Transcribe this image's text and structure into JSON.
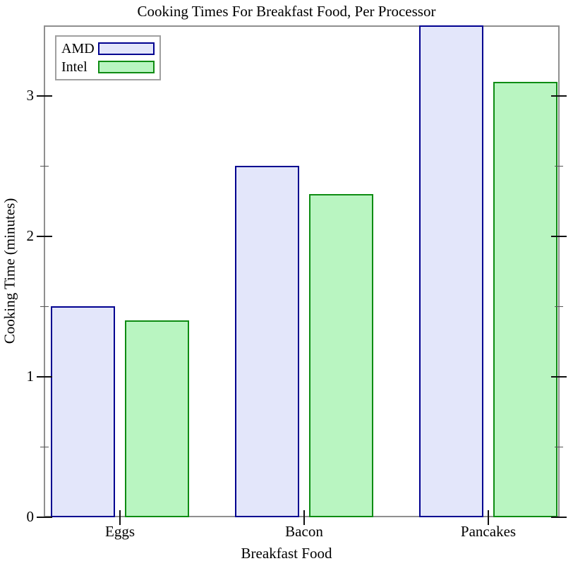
{
  "title": "Cooking Times For Breakfast Food, Per Processor",
  "legend": {
    "position": "top-left",
    "entries": [
      {
        "label": "AMD",
        "fill": "#e3e6fa",
        "border": "#000090"
      },
      {
        "label": "Intel",
        "fill": "#b9f5c1",
        "border": "#0e8c13"
      }
    ]
  },
  "chart_data": {
    "type": "bar",
    "title": "Cooking Times For Breakfast Food, Per Processor",
    "xlabel": "Breakfast Food",
    "ylabel": "Cooking Time (minutes)",
    "categories": [
      "Eggs",
      "Bacon",
      "Pancakes"
    ],
    "series": [
      {
        "name": "AMD",
        "values": [
          1.5,
          2.5,
          3.5
        ],
        "fill": "#e3e6fa",
        "border": "#000090"
      },
      {
        "name": "Intel",
        "values": [
          1.4,
          2.3,
          3.1
        ],
        "fill": "#b9f5c1",
        "border": "#0e8c13"
      }
    ],
    "ylim": [
      0,
      3.5
    ],
    "y_major_ticks": [
      0,
      1,
      2,
      3
    ],
    "y_minor_ticks": [
      0.5,
      1.5,
      2.5
    ],
    "grid": false,
    "legend_position": "top-left",
    "frame_color": "#8f8f8f"
  }
}
